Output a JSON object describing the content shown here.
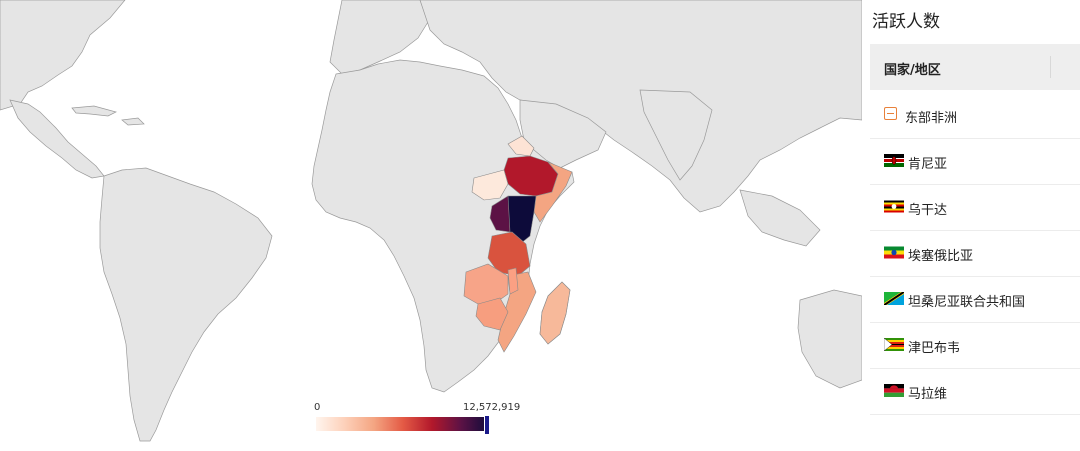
{
  "legend": {
    "min_label": "0",
    "max_label": "12,572,919"
  },
  "panel": {
    "title": "活跃人数",
    "column_header": "国家/地区",
    "group_label": "东部非洲",
    "rows": [
      {
        "name": "肯尼亚",
        "flag": "kenya-flag-icon"
      },
      {
        "name": "乌干达",
        "flag": "uganda-flag-icon"
      },
      {
        "name": "埃塞俄比亚",
        "flag": "ethiopia-flag-icon"
      },
      {
        "name": "坦桑尼亚联合共和国",
        "flag": "tanzania-flag-icon"
      },
      {
        "name": "津巴布韦",
        "flag": "zimbabwe-flag-icon"
      },
      {
        "name": "马拉维",
        "flag": "malawi-flag-icon"
      }
    ]
  },
  "colors": {
    "land": "#e5e5e5",
    "border": "#9a9a9a",
    "scale_low": "#fff5ee",
    "scale_high": "#0d0b3a"
  }
}
